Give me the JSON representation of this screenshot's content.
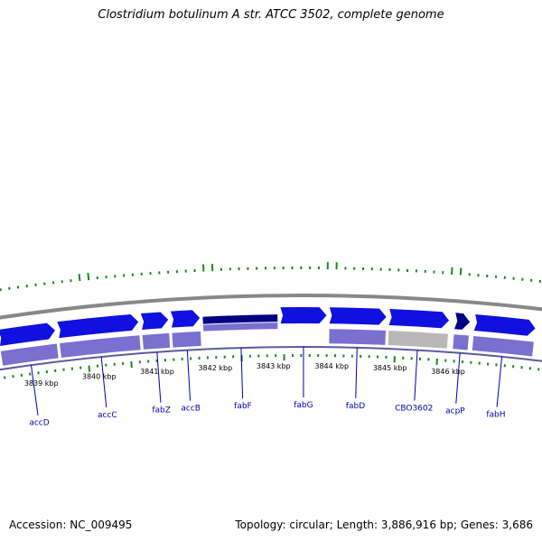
{
  "title": "Clostridium botulinum A str. ATCC 3502, complete genome",
  "footer": {
    "accession": "Accession: NC_009495",
    "topology": "Topology: circular; Length: 3,886,916 bp; Genes: 3,686"
  },
  "colors": {
    "gene_forward": "#1010e0",
    "gene_selected": "#000080",
    "lane_cds": "#7a70d0",
    "lane_other": "#b8b8b8",
    "backbone": "#888888",
    "tick": "#1a8a1a",
    "label": "#0000aa"
  },
  "kbp_labels": [
    {
      "text": "3839 kbp",
      "pos": 3839
    },
    {
      "text": "3840 kbp",
      "pos": 3840
    },
    {
      "text": "3841 kbp",
      "pos": 3841
    },
    {
      "text": "3842 kbp",
      "pos": 3842
    },
    {
      "text": "3843 kbp",
      "pos": 3843
    },
    {
      "text": "3844 kbp",
      "pos": 3844
    },
    {
      "text": "3845 kbp",
      "pos": 3845
    },
    {
      "text": "3846 kbp",
      "pos": 3846
    }
  ],
  "genes": [
    {
      "name": "accD",
      "start": 3838.4,
      "end": 3839.35,
      "lane_color": "lane_cds"
    },
    {
      "name": "accC",
      "start": 3839.4,
      "end": 3840.75,
      "lane_color": "lane_cds"
    },
    {
      "name": "fabZ",
      "start": 3840.8,
      "end": 3841.25,
      "lane_color": "lane_cds"
    },
    {
      "name": "accB",
      "start": 3841.3,
      "end": 3841.78,
      "lane_color": "lane_cds"
    },
    {
      "name": "fabF",
      "start": 3841.83,
      "end": 3843.08,
      "lane_color": "lane_cds",
      "selected": true
    },
    {
      "name": "fabG",
      "start": 3843.13,
      "end": 3843.9,
      "lane_color": "none"
    },
    {
      "name": "fabD",
      "start": 3843.95,
      "end": 3844.9,
      "lane_color": "lane_cds"
    },
    {
      "name": "CBO3602",
      "start": 3844.95,
      "end": 3845.95,
      "lane_color": "lane_other"
    },
    {
      "name": "acpP",
      "start": 3846.05,
      "end": 3846.3,
      "lane_color": "lane_cds",
      "dark": true
    },
    {
      "name": "fabH",
      "start": 3846.38,
      "end": 3847.4,
      "lane_color": "lane_cds"
    }
  ]
}
